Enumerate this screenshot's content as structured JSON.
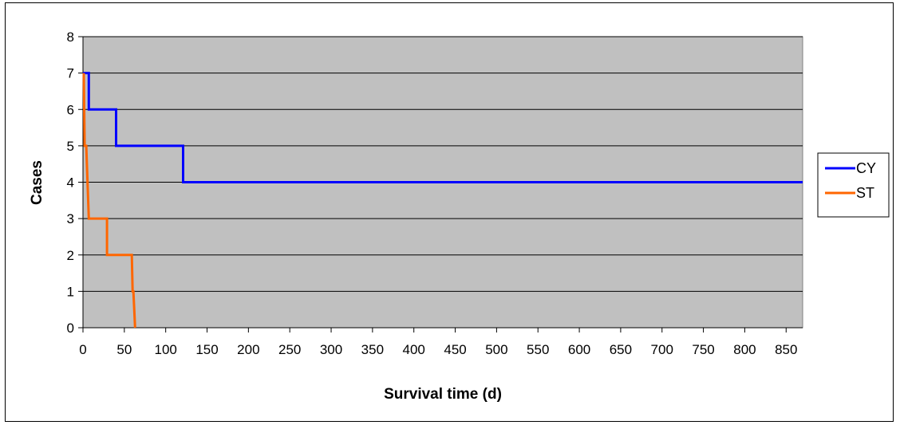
{
  "chart_data": {
    "type": "line",
    "step": true,
    "xlabel": "Survival time (d)",
    "ylabel": "Cases",
    "xlim": [
      0,
      870
    ],
    "ylim": [
      0,
      8
    ],
    "x_ticks": [
      0,
      50,
      100,
      150,
      200,
      250,
      300,
      350,
      400,
      450,
      500,
      550,
      600,
      650,
      700,
      750,
      800,
      850
    ],
    "y_ticks": [
      0,
      1,
      2,
      3,
      4,
      5,
      6,
      7,
      8
    ],
    "grid": "horizontal",
    "plot_background": "#c0c0c0",
    "legend_position": "right",
    "series": [
      {
        "name": "CY",
        "color": "#0000ff",
        "points": [
          [
            0,
            7
          ],
          [
            7,
            7
          ],
          [
            7,
            6
          ],
          [
            40,
            6
          ],
          [
            40,
            5
          ],
          [
            121,
            5
          ],
          [
            121,
            4
          ],
          [
            870,
            4
          ]
        ]
      },
      {
        "name": "ST",
        "color": "#ff6600",
        "points": [
          [
            1,
            7
          ],
          [
            2,
            5
          ],
          [
            4,
            5
          ],
          [
            7,
            3
          ],
          [
            29,
            3
          ],
          [
            29,
            2
          ],
          [
            59,
            2
          ],
          [
            60,
            1
          ],
          [
            61,
            1
          ],
          [
            63,
            0
          ]
        ]
      }
    ]
  }
}
